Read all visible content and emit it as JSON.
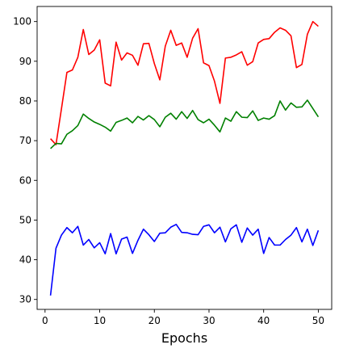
{
  "chart_data": {
    "type": "line",
    "title": "",
    "xlabel": "Epochs",
    "ylabel": "",
    "xlim": [
      -1.45,
      52.45
    ],
    "ylim": [
      27.5,
      103.8
    ],
    "xticks": [
      0,
      10,
      20,
      30,
      40,
      50
    ],
    "yticks": [
      30,
      40,
      50,
      60,
      70,
      80,
      90,
      100
    ],
    "grid": false,
    "legend": "none",
    "x": [
      1,
      2,
      3,
      4,
      5,
      6,
      7,
      8,
      9,
      10,
      11,
      12,
      13,
      14,
      15,
      16,
      17,
      18,
      19,
      20,
      21,
      22,
      23,
      24,
      25,
      26,
      27,
      28,
      29,
      30,
      31,
      32,
      33,
      34,
      35,
      36,
      37,
      38,
      39,
      40,
      41,
      42,
      43,
      44,
      45,
      46,
      47,
      48,
      49,
      50
    ],
    "series": [
      {
        "name": "red",
        "color": "#ff0000",
        "values": [
          70.5,
          69.0,
          78.0,
          87.2,
          87.8,
          91.0,
          98.0,
          91.7,
          92.8,
          95.4,
          84.5,
          83.8,
          94.8,
          90.3,
          92.1,
          91.5,
          89.0,
          94.4,
          94.5,
          89.4,
          85.3,
          93.8,
          97.8,
          94.0,
          94.6,
          91.0,
          95.8,
          98.2,
          89.6,
          88.9,
          85.0,
          79.4,
          90.8,
          91.0,
          91.6,
          92.4,
          89.0,
          89.9,
          94.6,
          95.5,
          95.7,
          97.3,
          98.4,
          97.8,
          96.4,
          88.4,
          89.2,
          96.8,
          100.0,
          98.8
        ]
      },
      {
        "name": "green",
        "color": "#008000",
        "values": [
          68.0,
          69.3,
          69.2,
          71.6,
          72.5,
          73.8,
          76.7,
          75.6,
          74.7,
          74.1,
          73.4,
          72.4,
          74.6,
          75.1,
          75.7,
          74.5,
          76.1,
          75.2,
          76.3,
          75.3,
          73.5,
          75.9,
          76.9,
          75.4,
          77.3,
          75.6,
          77.6,
          75.3,
          74.5,
          75.4,
          73.9,
          72.2,
          75.7,
          74.9,
          77.3,
          75.9,
          75.8,
          77.5,
          75.1,
          75.7,
          75.4,
          76.3,
          80.0,
          77.7,
          79.5,
          78.4,
          78.5,
          80.2,
          78.1,
          76.0
        ]
      },
      {
        "name": "blue",
        "color": "#0000ff",
        "values": [
          31.0,
          42.9,
          46.2,
          48.1,
          46.8,
          48.4,
          43.7,
          45.1,
          43.0,
          44.3,
          41.5,
          46.6,
          41.5,
          45.2,
          45.7,
          41.6,
          44.9,
          47.7,
          46.3,
          44.6,
          46.7,
          46.8,
          48.2,
          48.9,
          46.9,
          46.8,
          46.4,
          46.3,
          48.4,
          48.8,
          46.8,
          48.2,
          44.5,
          47.8,
          48.8,
          44.4,
          48.0,
          46.2,
          47.7,
          41.6,
          45.6,
          43.7,
          43.7,
          45.1,
          46.2,
          48.1,
          44.5,
          47.7,
          43.6,
          47.4
        ]
      }
    ]
  }
}
